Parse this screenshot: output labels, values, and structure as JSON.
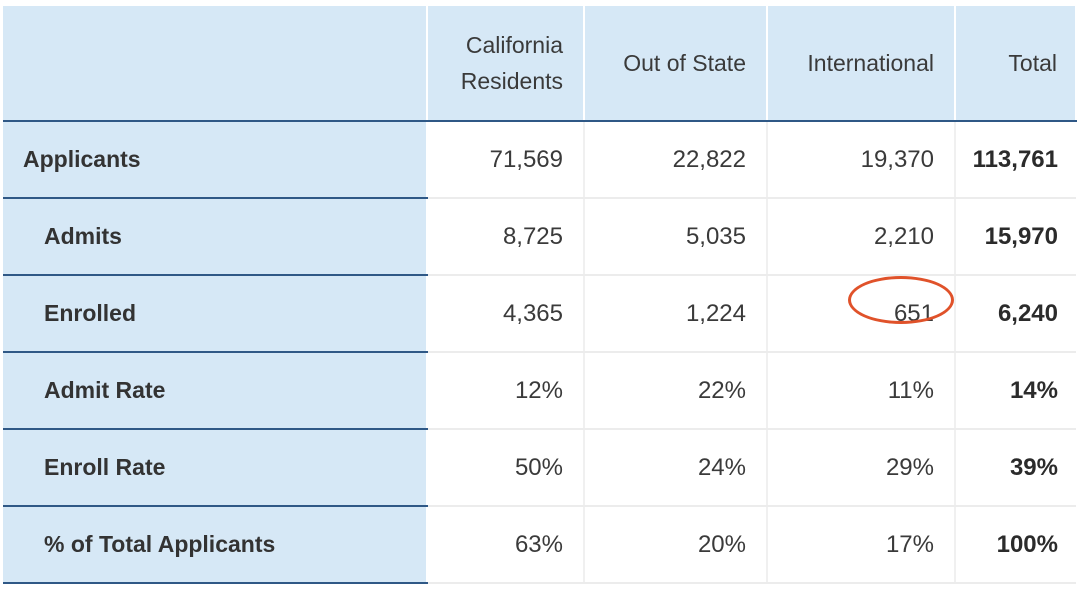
{
  "table": {
    "columns": [
      "",
      "California Residents",
      "Out of State",
      "International",
      "Total"
    ],
    "header_lines": [
      [],
      [
        "California",
        "Residents"
      ],
      [
        "Out of State"
      ],
      [
        "International"
      ],
      [
        "Total"
      ]
    ],
    "rows": [
      {
        "label": "Applicants",
        "indent": false,
        "values": [
          "71,569",
          "22,822",
          "19,370"
        ],
        "total": "113,761"
      },
      {
        "label": "Admits",
        "indent": true,
        "values": [
          "8,725",
          "5,035",
          "2,210"
        ],
        "total": "15,970"
      },
      {
        "label": "Enrolled",
        "indent": true,
        "values": [
          "4,365",
          "1,224",
          "651"
        ],
        "total": "6,240"
      },
      {
        "label": "Admit Rate",
        "indent": true,
        "values": [
          "12%",
          "22%",
          "11%"
        ],
        "total": "14%"
      },
      {
        "label": "Enroll Rate",
        "indent": true,
        "values": [
          "50%",
          "24%",
          "29%"
        ],
        "total": "39%"
      },
      {
        "label": "% of Total Applicants",
        "indent": true,
        "values": [
          "63%",
          "20%",
          "17%"
        ],
        "total": "100%"
      }
    ]
  },
  "annotation": {
    "circled_value": "651",
    "circle_color": "#e0522a"
  },
  "colors": {
    "header_bg": "#d6e8f6",
    "row_divider": "#2f5886",
    "text": "#3a3a3a"
  }
}
